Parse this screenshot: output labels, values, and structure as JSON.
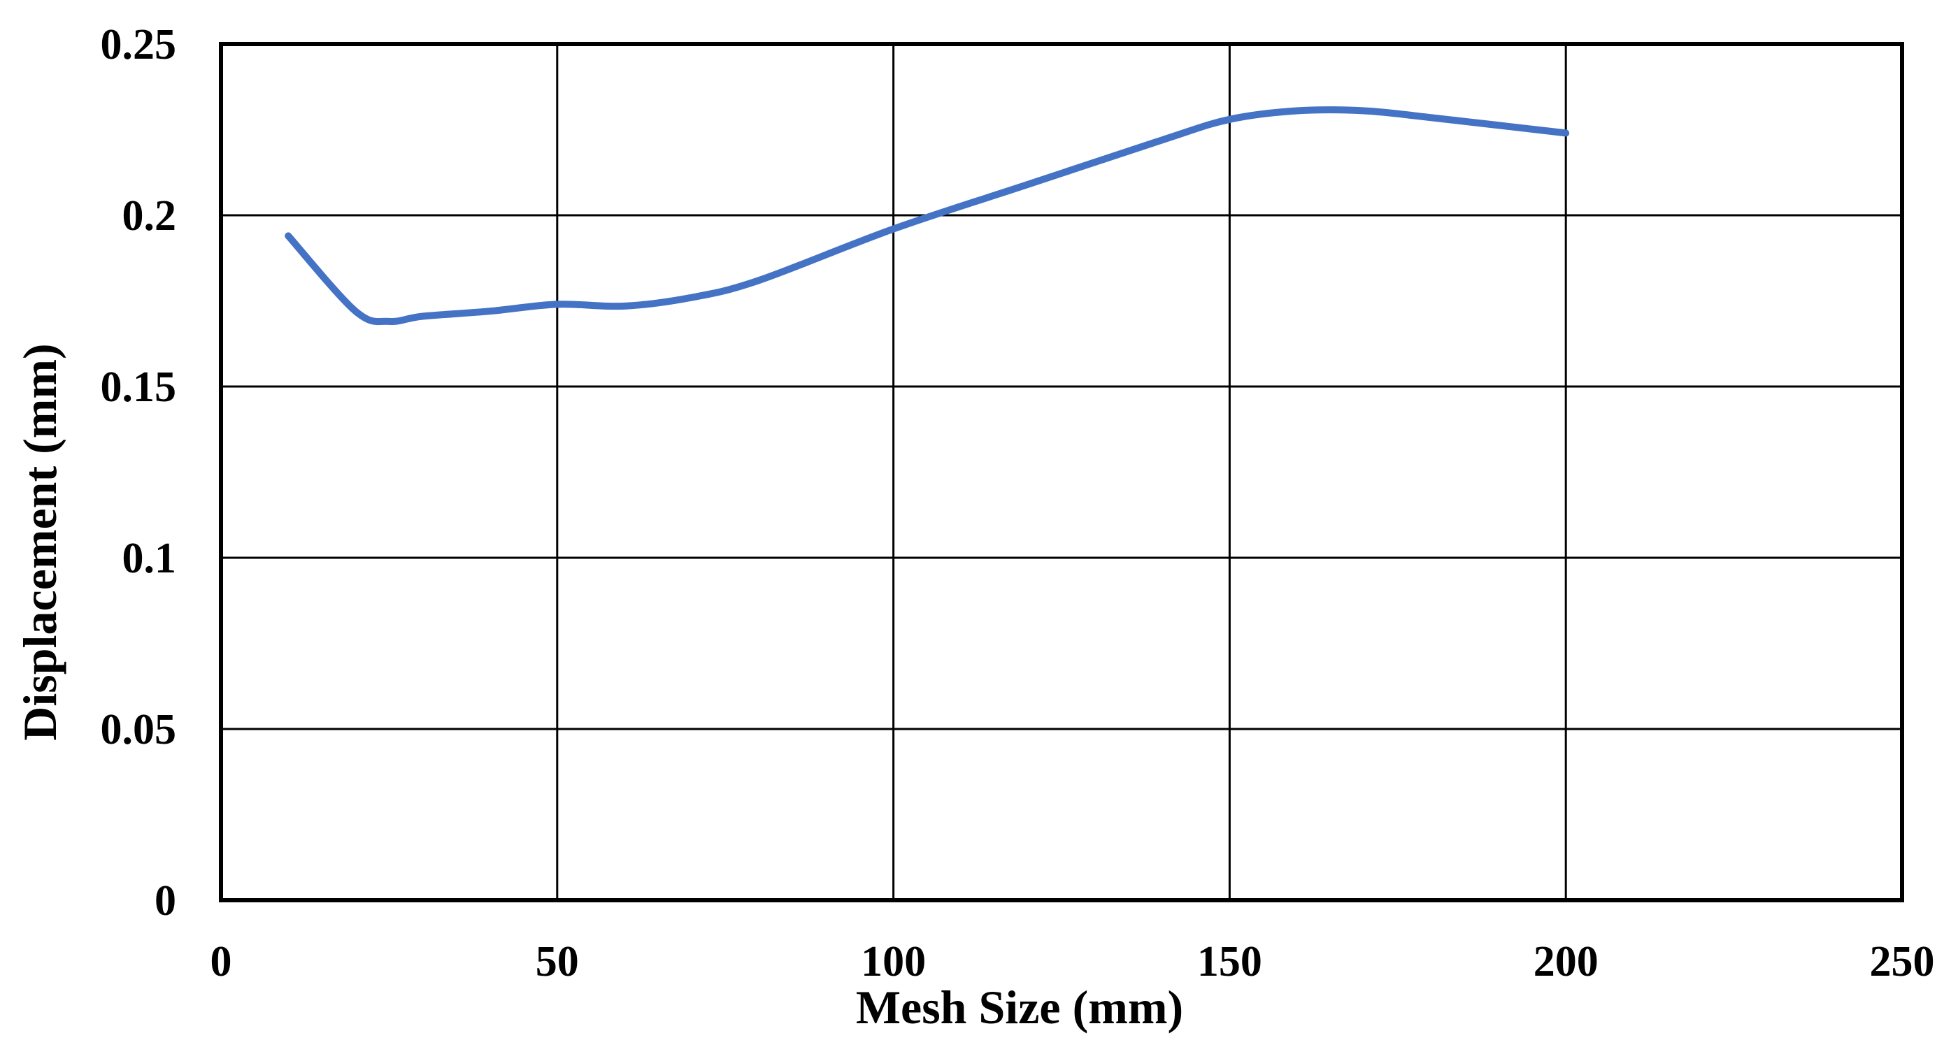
{
  "chart_data": {
    "type": "line",
    "title": "",
    "xlabel": "Mesh Size (mm)",
    "ylabel": "Displacement (mm)",
    "xlim": [
      0,
      250
    ],
    "ylim": [
      0,
      0.25
    ],
    "x_ticks": [
      "0",
      "50",
      "100",
      "150",
      "200",
      "250"
    ],
    "y_ticks": [
      "0",
      "0.05",
      "0.1",
      "0.15",
      "0.2",
      "0.25"
    ],
    "grid": true,
    "legend": "none",
    "series": [
      {
        "color": "#4472C4",
        "smooth": true,
        "x": [
          10,
          20,
          25,
          30,
          40,
          50,
          60,
          70,
          80,
          100,
          120,
          140,
          150,
          160,
          170,
          180,
          200
        ],
        "y": [
          0.194,
          0.172,
          0.169,
          0.1705,
          0.172,
          0.174,
          0.1735,
          0.176,
          0.181,
          0.196,
          0.209,
          0.222,
          0.228,
          0.2305,
          0.2305,
          0.2285,
          0.224
        ]
      }
    ]
  }
}
